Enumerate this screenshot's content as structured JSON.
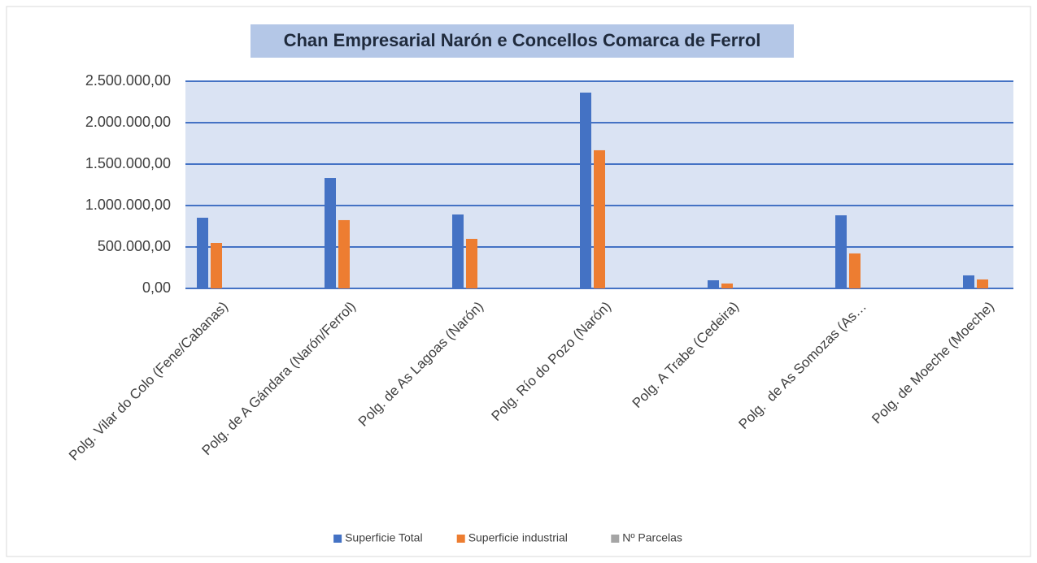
{
  "chart_data": {
    "type": "bar",
    "title": "Chan Empresarial Narón e Concellos Comarca de Ferrol",
    "categories": [
      "Polg. Vilar do Colo (Fene/Cabanas)",
      "Polg. de A Gándara (Narón/Ferrol)",
      "Polg. de As Lagoas (Narón)",
      "Polg. Río do Pozo (Narón)",
      "Polg. A Trabe (Cedeira)",
      "Polg.  de As Somozas (As…",
      "Polg. de Moeche (Moeche)"
    ],
    "series": [
      {
        "name": "Superficie Total",
        "color": "#4472c4",
        "values": [
          853000,
          1333000,
          892000,
          2363000,
          98000,
          882000,
          157000
        ]
      },
      {
        "name": "Superficie industrial",
        "color": "#ed7d31",
        "values": [
          549000,
          824000,
          598000,
          1667000,
          59000,
          422000,
          108000
        ]
      },
      {
        "name": "Nº Parcelas",
        "color": "#a5a5a5",
        "values": [
          0,
          0,
          0,
          0,
          0,
          0,
          0
        ]
      }
    ],
    "ylim": [
      0,
      2500000
    ],
    "yticks": [
      {
        "value": 0,
        "label": "0,00"
      },
      {
        "value": 500000,
        "label": "500.000,00"
      },
      {
        "value": 1000000,
        "label": "1.000.000,00"
      },
      {
        "value": 1500000,
        "label": "1.500.000,00"
      },
      {
        "value": 2000000,
        "label": "2.000.000,00"
      },
      {
        "value": 2500000,
        "label": "2.500.000,00"
      }
    ],
    "grid": true,
    "legend": "bottom"
  }
}
